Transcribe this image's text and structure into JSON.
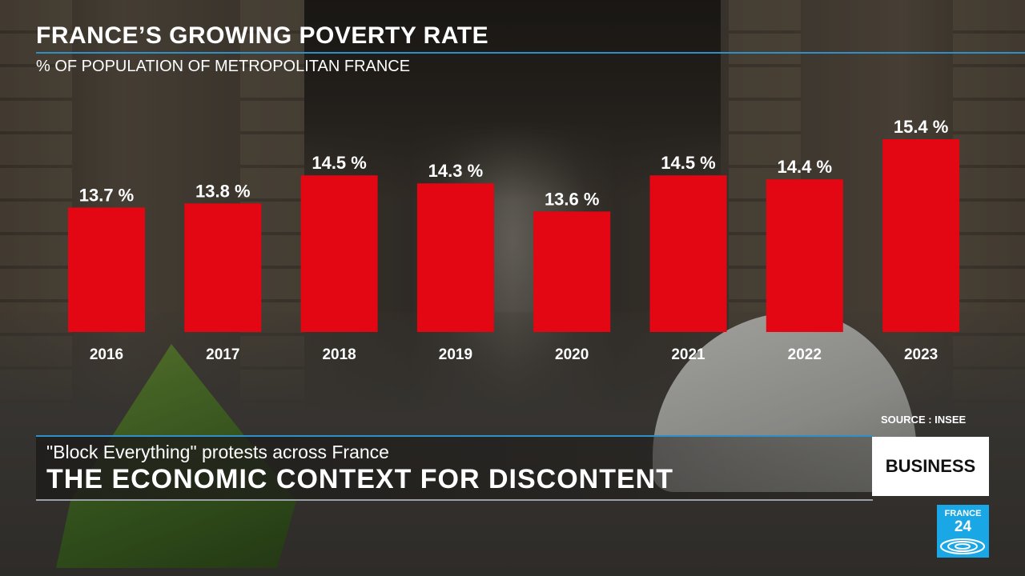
{
  "header": {
    "title": "FRANCE’S GROWING POVERTY RATE",
    "subtitle": "% OF POPULATION OF METROPOLITAN FRANCE"
  },
  "chart_data": {
    "type": "bar",
    "title": "FRANCE’S GROWING POVERTY RATE",
    "subtitle": "% OF POPULATION OF METROPOLITAN FRANCE",
    "categories": [
      "2016",
      "2017",
      "2018",
      "2019",
      "2020",
      "2021",
      "2022",
      "2023"
    ],
    "values": [
      13.7,
      13.8,
      14.5,
      14.3,
      13.6,
      14.5,
      14.4,
      15.4
    ],
    "value_labels": [
      "13.7 %",
      "13.8 %",
      "14.5 %",
      "14.3 %",
      "13.6 %",
      "14.5 %",
      "14.4 %",
      "15.4 %"
    ],
    "bar_color": "#e30613",
    "grid": false,
    "legend": "none"
  },
  "source": "SOURCE : INSEE",
  "lower_third": {
    "subheadline": "\"Block Everything\" protests across France",
    "headline": "THE ECONOMIC CONTEXT FOR DISCONTENT",
    "section_badge": "BUSINESS"
  },
  "logo": {
    "line1": "FRANCE",
    "line2": "24",
    "color": "#1aa7e6",
    "icon": "globe-waves-icon"
  },
  "colors": {
    "accent_rule": "#2f8fc6",
    "bar": "#e30613"
  }
}
